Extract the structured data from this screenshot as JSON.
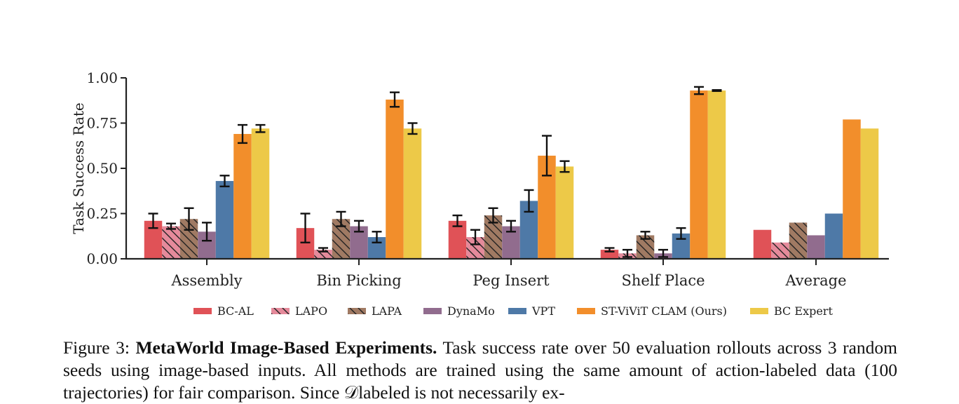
{
  "chart_data": {
    "type": "bar",
    "ylabel": "Task Success Rate",
    "xlabel": "",
    "ylim": [
      0,
      1.0
    ],
    "yticks": [
      0.0,
      0.25,
      0.5,
      0.75,
      1.0
    ],
    "ytick_labels": [
      "0.00",
      "0.25",
      "0.50",
      "0.75",
      "1.00"
    ],
    "categories": [
      "Assembly",
      "Bin Picking",
      "Peg Insert",
      "Shelf Place",
      "Average"
    ],
    "legend_position": "bottom-center",
    "series": [
      {
        "name": "BC-AL",
        "color": "#e05257",
        "hatch": "none",
        "values": [
          0.21,
          0.17,
          0.21,
          0.05,
          0.16
        ],
        "errors": [
          0.04,
          0.08,
          0.03,
          0.01,
          null
        ]
      },
      {
        "name": "LAPO",
        "color": "#e58a9b",
        "hatch": "backslash",
        "values": [
          0.18,
          0.05,
          0.12,
          0.03,
          0.09
        ],
        "errors": [
          0.015,
          0.01,
          0.04,
          0.02,
          null
        ]
      },
      {
        "name": "LAPA",
        "color": "#a07a63",
        "hatch": "backslash",
        "values": [
          0.22,
          0.22,
          0.24,
          0.13,
          0.2
        ],
        "errors": [
          0.06,
          0.04,
          0.04,
          0.02,
          null
        ]
      },
      {
        "name": "DynaMo",
        "color": "#916c8e",
        "hatch": "none",
        "values": [
          0.15,
          0.18,
          0.18,
          0.03,
          0.13
        ],
        "errors": [
          0.05,
          0.03,
          0.03,
          0.02,
          null
        ]
      },
      {
        "name": "VPT",
        "color": "#4e79a7",
        "hatch": "none",
        "values": [
          0.43,
          0.12,
          0.32,
          0.14,
          0.25
        ],
        "errors": [
          0.03,
          0.03,
          0.06,
          0.03,
          null
        ]
      },
      {
        "name": "ST-ViViT CLAM (Ours)",
        "color": "#f28e2b",
        "hatch": "none",
        "values": [
          0.69,
          0.88,
          0.57,
          0.93,
          0.77
        ],
        "errors": [
          0.05,
          0.04,
          0.11,
          0.02,
          null
        ]
      },
      {
        "name": "BC Expert",
        "color": "#edc948",
        "hatch": "none",
        "values": [
          0.72,
          0.72,
          0.51,
          0.93,
          0.72
        ],
        "errors": [
          0.02,
          0.03,
          0.03,
          0.003,
          null
        ]
      }
    ]
  },
  "caption": {
    "figure_label": "Figure 3:",
    "bold_title": "MetaWorld Image-Based Experiments.",
    "text": "Task success rate over 50 evaluation rollouts across 3 random seeds using image-based inputs. All methods are trained using the same amount of action-labeled data (100 trajectories) for fair comparison. Since 𝒟labeled is not necessarily ex-"
  }
}
